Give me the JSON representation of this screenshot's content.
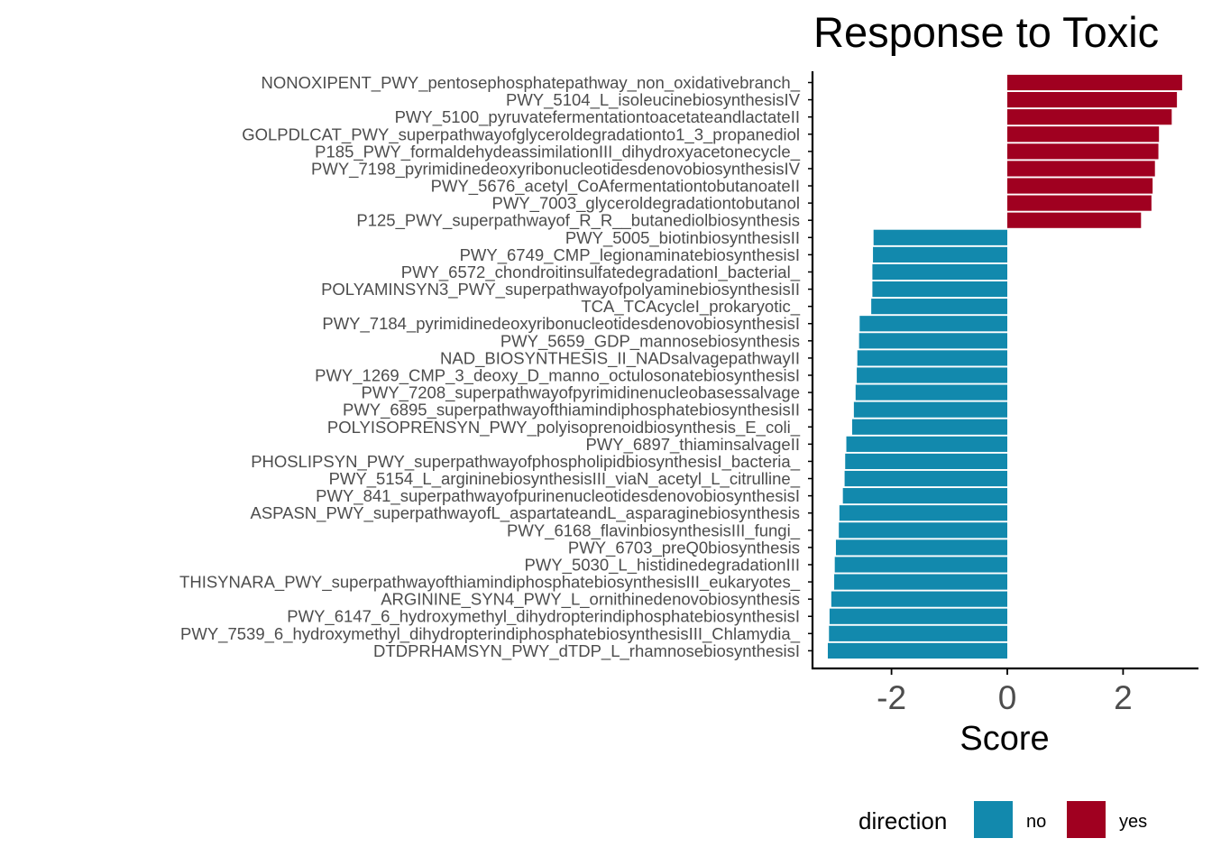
{
  "chart_data": {
    "type": "bar",
    "orientation": "horizontal",
    "title": "Response to Toxic",
    "xlabel": "Score",
    "ylabel": "",
    "xlim": [
      -3.35,
      3.3
    ],
    "xticks": [
      -2,
      0,
      2
    ],
    "xtick_labels": [
      "-2",
      "0",
      "2"
    ],
    "grid": false,
    "legend": {
      "title": "direction",
      "position": "bottom-right",
      "entries": [
        {
          "label": "no",
          "color": "#1289AD"
        },
        {
          "label": "yes",
          "color": "#A00020"
        }
      ]
    },
    "colors": {
      "no": "#1289AD",
      "yes": "#A00020"
    },
    "categories": [
      "NONOXIPENT_PWY_pentosephosphatepathway_non_oxidativebranch_",
      "PWY_5104_L_isoleucinebiosynthesisIV",
      "PWY_5100_pyruvatefermentationtoacetateandlactateII",
      "GOLPDLCAT_PWY_superpathwayofglyceroldegradationto1_3_propanediol",
      "P185_PWY_formaldehydeassimilationIII_dihydroxyacetonecycle_",
      "PWY_7198_pyrimidinedeoxyribonucleotidesdenovobiosynthesisIV",
      "PWY_5676_acetyl_CoAfermentationtobutanoateII",
      "PWY_7003_glyceroldegradationtobutanol",
      "P125_PWY_superpathwayof_R_R__butanediolbiosynthesis",
      "PWY_5005_biotinbiosynthesisII",
      "PWY_6749_CMP_legionaminatebiosynthesisI",
      "PWY_6572_chondroitinsulfatedegradationI_bacterial_",
      "POLYAMINSYN3_PWY_superpathwayofpolyaminebiosynthesisII",
      "TCA_TCAcycleI_prokaryotic_",
      "PWY_7184_pyrimidinedeoxyribonucleotidesdenovobiosynthesisI",
      "PWY_5659_GDP_mannosebiosynthesis",
      "NAD_BIOSYNTHESIS_II_NADsalvagepathwayII",
      "PWY_1269_CMP_3_deoxy_D_manno_octulosonatebiosynthesisI",
      "PWY_7208_superpathwayofpyrimidinenucleobasessalvage",
      "PWY_6895_superpathwayofthiamindiphosphatebiosynthesisII",
      "POLYISOPRENSYN_PWY_polyisoprenoidbiosynthesis_E_coli_",
      "PWY_6897_thiaminsalvageII",
      "PHOSLIPSYN_PWY_superpathwayofphospholipidbiosynthesisI_bacteria_",
      "PWY_5154_L_argininebiosynthesisIII_viaN_acetyl_L_citrulline_",
      "PWY_841_superpathwayofpurinenucleotidesdenovobiosynthesisI",
      "ASPASN_PWY_superpathwayofL_aspartateandL_asparaginebiosynthesis",
      "PWY_6168_flavinbiosynthesisIII_fungi_",
      "PWY_6703_preQ0biosynthesis",
      "PWY_5030_L_histidinedegradationIII",
      "THISYNARA_PWY_superpathwayofthiamindiphosphatebiosynthesisIII_eukaryotes_",
      "ARGININE_SYN4_PWY_L_ornithinedenovobiosynthesis",
      "PWY_6147_6_hydroxymethyl_dihydropterindiphosphatebiosynthesisI",
      "PWY_7539_6_hydroxymethyl_dihydropterindiphosphatebiosynthesisIII_Chlamydia_",
      "DTDPRHAMSYN_PWY_dTDP_L_rhamnosebiosynthesisI"
    ],
    "values": [
      3.02,
      2.93,
      2.84,
      2.62,
      2.61,
      2.55,
      2.51,
      2.49,
      2.31,
      -2.31,
      -2.32,
      -2.33,
      -2.33,
      -2.35,
      -2.55,
      -2.56,
      -2.59,
      -2.6,
      -2.62,
      -2.65,
      -2.68,
      -2.78,
      -2.8,
      -2.81,
      -2.84,
      -2.9,
      -2.91,
      -2.96,
      -2.98,
      -2.99,
      -3.04,
      -3.07,
      -3.08,
      -3.1
    ],
    "direction": [
      "yes",
      "yes",
      "yes",
      "yes",
      "yes",
      "yes",
      "yes",
      "yes",
      "yes",
      "no",
      "no",
      "no",
      "no",
      "no",
      "no",
      "no",
      "no",
      "no",
      "no",
      "no",
      "no",
      "no",
      "no",
      "no",
      "no",
      "no",
      "no",
      "no",
      "no",
      "no",
      "no",
      "no",
      "no",
      "no"
    ]
  }
}
